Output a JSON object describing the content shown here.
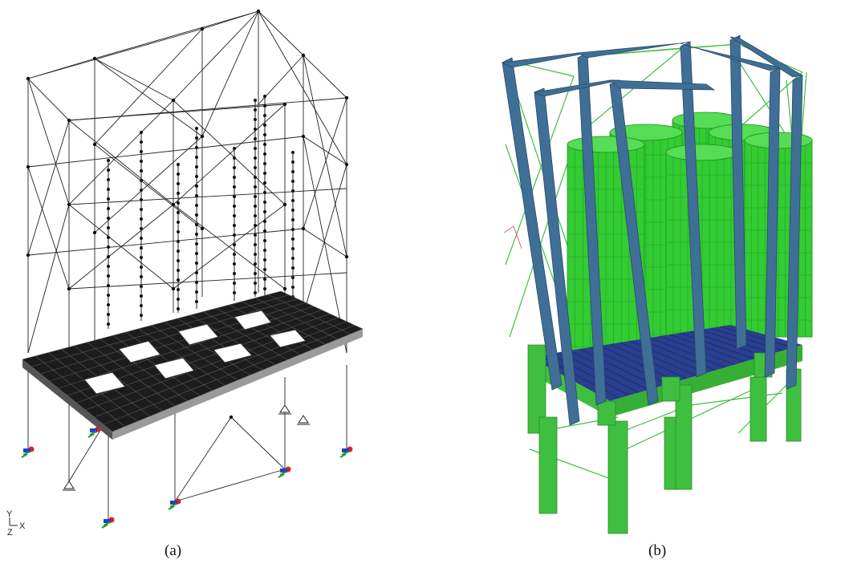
{
  "figure": {
    "panels": [
      {
        "id": "a",
        "caption": "(a)",
        "content": "wireframe-structural-model"
      },
      {
        "id": "b",
        "caption": "(b)",
        "content": "rendered-3d-model"
      }
    ],
    "axis_triad": {
      "y_label": "Y",
      "x_label": "X",
      "z_label": "Z"
    }
  },
  "colors": {
    "wire": "#222222",
    "slab": "#1a1a1a",
    "column_blue": "#3f6f96",
    "silo_green": "#33cc33",
    "deck_blue": "#2a3f8f",
    "leg_green": "#3fbf3f",
    "support_red": "#e02020",
    "support_blue": "#2040d0",
    "support_green": "#20a020"
  }
}
